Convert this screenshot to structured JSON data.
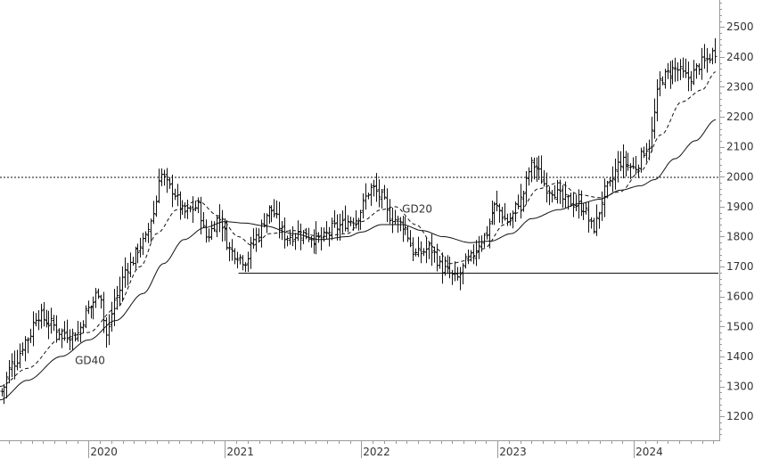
{
  "chart_data": {
    "type": "ohlc",
    "instrument": "weekly price bars with two moving averages",
    "x_axis": {
      "tick_labels": [
        "2020",
        "2021",
        "2022",
        "2023",
        "2024"
      ],
      "tick_dates": [
        2020.0,
        2021.0,
        2022.0,
        2023.0,
        2024.0
      ],
      "range": [
        2019.35,
        2024.62
      ]
    },
    "y_axis": {
      "position": "right",
      "tick_labels": [
        "1200",
        "1300",
        "1400",
        "1500",
        "1600",
        "1700",
        "1800",
        "1900",
        "2000",
        "2100",
        "2200",
        "2300",
        "2400",
        "2500"
      ],
      "ticks": [
        1200,
        1300,
        1400,
        1500,
        1600,
        1700,
        1800,
        1900,
        2000,
        2100,
        2200,
        2300,
        2400,
        2500
      ],
      "range": [
        1120,
        2590
      ]
    },
    "price_anchors": [
      [
        2019.35,
        1280
      ],
      [
        2019.45,
        1380
      ],
      [
        2019.55,
        1460
      ],
      [
        2019.62,
        1540
      ],
      [
        2019.72,
        1510
      ],
      [
        2019.8,
        1480
      ],
      [
        2019.9,
        1470
      ],
      [
        2020.0,
        1560
      ],
      [
        2020.08,
        1620
      ],
      [
        2020.13,
        1470
      ],
      [
        2020.2,
        1600
      ],
      [
        2020.28,
        1700
      ],
      [
        2020.4,
        1780
      ],
      [
        2020.48,
        1880
      ],
      [
        2020.52,
        2010
      ],
      [
        2020.6,
        1960
      ],
      [
        2020.7,
        1880
      ],
      [
        2020.8,
        1900
      ],
      [
        2020.86,
        1800
      ],
      [
        2020.95,
        1860
      ],
      [
        2021.05,
        1750
      ],
      [
        2021.15,
        1720
      ],
      [
        2021.22,
        1800
      ],
      [
        2021.33,
        1890
      ],
      [
        2021.45,
        1800
      ],
      [
        2021.55,
        1810
      ],
      [
        2021.7,
        1790
      ],
      [
        2021.8,
        1830
      ],
      [
        2021.95,
        1860
      ],
      [
        2022.08,
        1960
      ],
      [
        2022.15,
        1930
      ],
      [
        2022.2,
        1870
      ],
      [
        2022.3,
        1840
      ],
      [
        2022.4,
        1740
      ],
      [
        2022.5,
        1760
      ],
      [
        2022.6,
        1690
      ],
      [
        2022.7,
        1660
      ],
      [
        2022.78,
        1720
      ],
      [
        2022.9,
        1800
      ],
      [
        2022.98,
        1900
      ],
      [
        2023.08,
        1850
      ],
      [
        2023.16,
        1920
      ],
      [
        2023.25,
        2040
      ],
      [
        2023.38,
        1960
      ],
      [
        2023.5,
        1920
      ],
      [
        2023.62,
        1900
      ],
      [
        2023.7,
        1830
      ],
      [
        2023.8,
        1960
      ],
      [
        2023.9,
        2050
      ],
      [
        2024.0,
        2030
      ],
      [
        2024.1,
        2100
      ],
      [
        2024.2,
        2330
      ],
      [
        2024.3,
        2360
      ],
      [
        2024.4,
        2330
      ],
      [
        2024.5,
        2380
      ],
      [
        2024.6,
        2420
      ]
    ],
    "gd20_anchors": [
      [
        2019.35,
        1300
      ],
      [
        2019.55,
        1360
      ],
      [
        2019.8,
        1460
      ],
      [
        2020.0,
        1480
      ],
      [
        2020.2,
        1560
      ],
      [
        2020.38,
        1700
      ],
      [
        2020.5,
        1810
      ],
      [
        2020.65,
        1890
      ],
      [
        2020.8,
        1920
      ],
      [
        2020.95,
        1870
      ],
      [
        2021.1,
        1800
      ],
      [
        2021.2,
        1770
      ],
      [
        2021.33,
        1810
      ],
      [
        2021.5,
        1820
      ],
      [
        2021.7,
        1800
      ],
      [
        2021.9,
        1810
      ],
      [
        2022.0,
        1850
      ],
      [
        2022.15,
        1890
      ],
      [
        2022.25,
        1900
      ],
      [
        2022.4,
        1840
      ],
      [
        2022.55,
        1760
      ],
      [
        2022.65,
        1710
      ],
      [
        2022.78,
        1720
      ],
      [
        2022.9,
        1760
      ],
      [
        2023.05,
        1840
      ],
      [
        2023.15,
        1880
      ],
      [
        2023.3,
        1960
      ],
      [
        2023.45,
        1980
      ],
      [
        2023.6,
        1940
      ],
      [
        2023.75,
        1930
      ],
      [
        2023.9,
        1950
      ],
      [
        2024.05,
        2020
      ],
      [
        2024.2,
        2140
      ],
      [
        2024.35,
        2250
      ],
      [
        2024.5,
        2290
      ],
      [
        2024.6,
        2350
      ]
    ],
    "gd40_anchors": [
      [
        2019.35,
        1255
      ],
      [
        2019.55,
        1320
      ],
      [
        2019.8,
        1400
      ],
      [
        2020.0,
        1455
      ],
      [
        2020.2,
        1520
      ],
      [
        2020.4,
        1610
      ],
      [
        2020.55,
        1710
      ],
      [
        2020.7,
        1790
      ],
      [
        2020.85,
        1830
      ],
      [
        2021.0,
        1850
      ],
      [
        2021.15,
        1845
      ],
      [
        2021.3,
        1835
      ],
      [
        2021.5,
        1810
      ],
      [
        2021.7,
        1790
      ],
      [
        2021.9,
        1800
      ],
      [
        2022.0,
        1815
      ],
      [
        2022.15,
        1840
      ],
      [
        2022.3,
        1840
      ],
      [
        2022.45,
        1820
      ],
      [
        2022.6,
        1800
      ],
      [
        2022.8,
        1780
      ],
      [
        2022.95,
        1785
      ],
      [
        2023.1,
        1810
      ],
      [
        2023.25,
        1860
      ],
      [
        2023.45,
        1890
      ],
      [
        2023.6,
        1910
      ],
      [
        2023.75,
        1925
      ],
      [
        2023.9,
        1955
      ],
      [
        2024.05,
        1970
      ],
      [
        2024.15,
        1990
      ],
      [
        2024.3,
        2060
      ],
      [
        2024.45,
        2120
      ],
      [
        2024.6,
        2190
      ]
    ],
    "horizontal_lines": [
      {
        "kind": "resistance",
        "y": 1998,
        "x_from": 2019.35,
        "x_to": 2024.62,
        "style": "dotted"
      },
      {
        "kind": "support",
        "y": 1678,
        "x_from": 2021.1,
        "x_to": 2024.62,
        "style": "solid"
      }
    ],
    "annotations": [
      {
        "text": "GD20",
        "x": 2022.3,
        "y": 1880
      },
      {
        "text": "GD40",
        "x": 2019.9,
        "y": 1375
      }
    ],
    "grid": false,
    "legend": "none"
  },
  "colors": {
    "background": "#ffffff",
    "bars": "#111111",
    "ma": "#111111",
    "axis": "#999999",
    "text": "#333333"
  }
}
